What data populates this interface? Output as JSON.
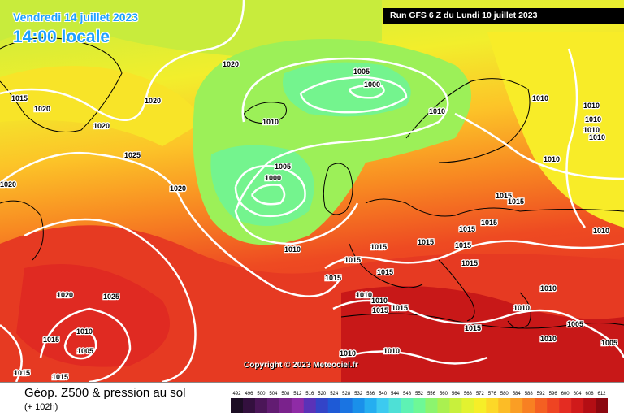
{
  "header": {
    "date_label": "Vendredi 14 juillet 2023",
    "time_label": "14:00 locale",
    "run_label": "Run GFS 6 Z du Lundi 10 juillet 2023"
  },
  "copyright": "Copyright © 2023 Meteociel.fr",
  "legend": {
    "title": "Géop. Z500 & pression au sol",
    "forecast": "(+ 102h)",
    "scale": [
      {
        "v": "492",
        "c": "#1c0d24"
      },
      {
        "v": "496",
        "c": "#33103e"
      },
      {
        "v": "500",
        "c": "#4b1658"
      },
      {
        "v": "504",
        "c": "#621c72"
      },
      {
        "v": "508",
        "c": "#7a228c"
      },
      {
        "v": "512",
        "c": "#8f2ba6"
      },
      {
        "v": "516",
        "c": "#5a32b8"
      },
      {
        "v": "520",
        "c": "#3344c8"
      },
      {
        "v": "524",
        "c": "#1e5ad6"
      },
      {
        "v": "528",
        "c": "#1a74e2"
      },
      {
        "v": "532",
        "c": "#1a90ea"
      },
      {
        "v": "536",
        "c": "#25aef0"
      },
      {
        "v": "540",
        "c": "#3ccaf0"
      },
      {
        "v": "544",
        "c": "#4ee0d6"
      },
      {
        "v": "548",
        "c": "#5ef2b4"
      },
      {
        "v": "552",
        "c": "#6ef896"
      },
      {
        "v": "556",
        "c": "#8cf46e"
      },
      {
        "v": "560",
        "c": "#aaf050"
      },
      {
        "v": "564",
        "c": "#c8f03c"
      },
      {
        "v": "568",
        "c": "#e2f230"
      },
      {
        "v": "572",
        "c": "#f6ee28"
      },
      {
        "v": "576",
        "c": "#fcd828"
      },
      {
        "v": "580",
        "c": "#fcbc26"
      },
      {
        "v": "584",
        "c": "#fa9e24"
      },
      {
        "v": "588",
        "c": "#f88022"
      },
      {
        "v": "592",
        "c": "#f46022"
      },
      {
        "v": "596",
        "c": "#ee4422"
      },
      {
        "v": "600",
        "c": "#e42c22"
      },
      {
        "v": "604",
        "c": "#d01a1a"
      },
      {
        "v": "608",
        "c": "#b40e14"
      },
      {
        "v": "612",
        "c": "#8c0810"
      }
    ]
  },
  "isobars": [
    "1015",
    "1020",
    "1020",
    "1020",
    "1020",
    "1025",
    "1020",
    "1020",
    "1010",
    "1005",
    "1000",
    "1010",
    "1005",
    "1000",
    "1020",
    "1010",
    "1010",
    "1010",
    "1010",
    "1010",
    "1010",
    "1010",
    "1010",
    "1015",
    "1015",
    "1015",
    "1015",
    "1015",
    "1015",
    "1015",
    "1015",
    "1015",
    "1015",
    "1015",
    "1015",
    "1015",
    "1015",
    "1010",
    "1010",
    "1010",
    "1010",
    "1010",
    "1010",
    "1010",
    "1005",
    "1005",
    "1020",
    "1025",
    "1015",
    "1010",
    "1005",
    "1015",
    "1015"
  ]
}
